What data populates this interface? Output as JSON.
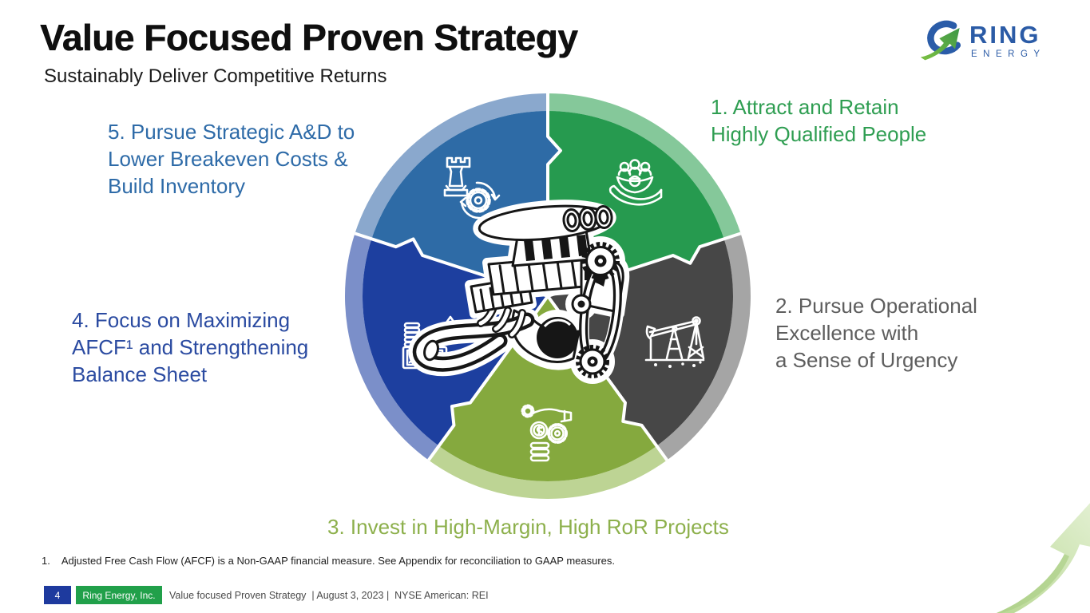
{
  "slide": {
    "title": "Value Focused Proven Strategy",
    "subtitle": "Sustainably Deliver Competitive Returns"
  },
  "logo": {
    "brand": "RING",
    "brand_sub": "ENERGY",
    "brand_color": "#2b5ba6",
    "swoosh_blue": "#2a5ca8",
    "swoosh_green": "#5fae49"
  },
  "diagram": {
    "type": "strategy-wheel",
    "center_icon": "engine-icon",
    "segments": [
      {
        "id": "attract-retain-people",
        "number": 1,
        "start": -90,
        "end": -18,
        "color": "#269a4f",
        "ring_color": "#85c89a",
        "icon": "people-in-hand-icon",
        "label_color": "#2f9e52",
        "label_lines": [
          "1. Attract and Retain",
          "Highly Qualified People"
        ]
      },
      {
        "id": "operational-excellence",
        "number": 2,
        "start": -18,
        "end": 54,
        "color": "#474747",
        "ring_color": "#a5a5a5",
        "icon": "pumpjack-icon",
        "label_color": "#5e5e5e",
        "label_lines": [
          "2. Pursue Operational",
          "Excellence with",
          "a Sense of Urgency"
        ]
      },
      {
        "id": "high-margin-projects",
        "number": 3,
        "start": 54,
        "end": 126,
        "color": "#85a93e",
        "ring_color": "#bdd494",
        "icon": "hand-gear-coins-icon",
        "label_color": "#8db04c",
        "label_lines": [
          "3. Invest in High-Margin, High RoR Projects"
        ]
      },
      {
        "id": "maximize-afcf",
        "number": 4,
        "start": 126,
        "end": 198,
        "color": "#1d3f9f",
        "ring_color": "#7b8fc9",
        "icon": "coins-cash-icon",
        "label_color": "#2b4ba1",
        "label_lines": [
          "4. Focus on Maximizing",
          "AFCF¹ and Strengthening",
          "Balance Sheet"
        ]
      },
      {
        "id": "strategic-ad",
        "number": 5,
        "start": 198,
        "end": 270,
        "color": "#2e6ba6",
        "ring_color": "#8aa8cd",
        "icon": "rook-gear-icon",
        "label_color": "#2e6ba8",
        "label_lines": [
          "5. Pursue Strategic A&D to",
          "Lower Breakeven Costs &",
          "Build Inventory"
        ]
      }
    ]
  },
  "footnote": {
    "number": "1.",
    "text": "Adjusted Free Cash Flow (AFCF) is a Non-GAAP financial measure. See Appendix for reconciliation to GAAP measures."
  },
  "footer": {
    "page_number": "4",
    "company": "Ring Energy, Inc.",
    "text": "Value focused Proven Strategy  | August 3, 2023 |  NYSE American: REI"
  }
}
